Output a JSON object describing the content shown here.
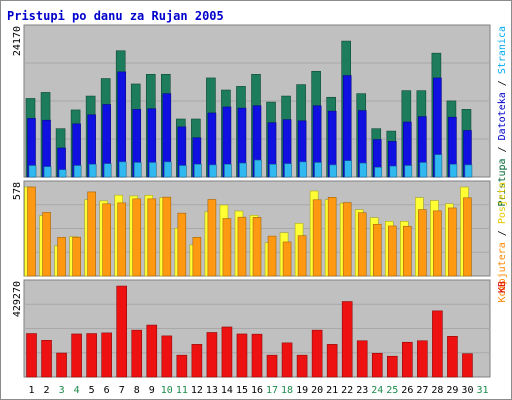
{
  "chart_data": [
    {
      "type": "bar",
      "title": "Pristupi po danu za Rujan 2005",
      "categories": [
        "1",
        "2",
        "3",
        "4",
        "5",
        "6",
        "7",
        "8",
        "9",
        "10",
        "11",
        "12",
        "13",
        "14",
        "15",
        "16",
        "17",
        "18",
        "19",
        "20",
        "21",
        "22",
        "23",
        "24",
        "25",
        "26",
        "27",
        "28",
        "29",
        "30",
        "31"
      ],
      "weekend_days": [
        "3",
        "4",
        "10",
        "11",
        "17",
        "18",
        "24",
        "25",
        "31"
      ],
      "panels": [
        {
          "name": "top",
          "ymax_label": "24170",
          "ymax": 24170,
          "right_labels": [
            {
              "text": "Pristupa",
              "color": "#006633"
            },
            {
              "text": " / ",
              "color": "#000000"
            },
            {
              "text": "Datoteka",
              "color": "#0000cc"
            },
            {
              "text": " / ",
              "color": "#000000"
            },
            {
              "text": "Stranica",
              "color": "#00aaee"
            }
          ],
          "series": [
            {
              "name": "Pristupa",
              "color": "#1c7c5c",
              "values": [
                13000,
                14000,
                8000,
                11100,
                13400,
                16300,
                20900,
                15400,
                17000,
                17000,
                9600,
                9600,
                16400,
                14400,
                15000,
                17000,
                12400,
                13400,
                15300,
                17500,
                13200,
                22500,
                13800,
                8000,
                7600,
                14300,
                14300,
                20500,
                12600,
                11200,
                0
              ]
            },
            {
              "name": "Datoteka",
              "color": "#1010e0",
              "values": [
                9700,
                9400,
                4800,
                8800,
                10300,
                12000,
                17400,
                11200,
                11300,
                13800,
                8300,
                6500,
                10600,
                11600,
                11400,
                11800,
                9000,
                9500,
                9300,
                11800,
                10900,
                16800,
                11000,
                6200,
                5900,
                9100,
                10000,
                16400,
                9900,
                7700,
                0
              ]
            },
            {
              "name": "Stranica",
              "color": "#30b8f0",
              "values": [
                1900,
                1700,
                1200,
                1900,
                2100,
                2200,
                2500,
                2400,
                2400,
                2500,
                1900,
                2100,
                2000,
                2100,
                2300,
                2800,
                2100,
                2200,
                2500,
                2400,
                2000,
                2700,
                2300,
                1600,
                1800,
                1900,
                2400,
                3700,
                2100,
                2000,
                0
              ]
            }
          ]
        },
        {
          "name": "middle",
          "ymax_label": "578",
          "ymax": 578,
          "right_labels": [
            {
              "text": "Kompjutera",
              "color": "#ff8800"
            },
            {
              "text": " / ",
              "color": "#000000"
            },
            {
              "text": "Posjeta",
              "color": "#e6c800"
            }
          ],
          "series": [
            {
              "name": "Posjeta",
              "color": "#ffff33",
              "values": [
                578,
                392,
                196,
                256,
                496,
                488,
                525,
                520,
                524,
                509,
                310,
                202,
                417,
                461,
                422,
                394,
                217,
                281,
                342,
                552,
                496,
                473,
                431,
                379,
                355,
                355,
                509,
                490,
                469,
                578,
                0
              ]
            },
            {
              "name": "Kompjutera",
              "color": "#ff9911",
              "values": [
                578,
                413,
                251,
                252,
                546,
                469,
                475,
                501,
                501,
                512,
                408,
                251,
                497,
                373,
                382,
                381,
                259,
                221,
                262,
                495,
                511,
                477,
                411,
                336,
                325,
                323,
                431,
                423,
                442,
                508,
                0
              ]
            }
          ]
        },
        {
          "name": "bottom",
          "ymax_label": "429270",
          "ymax": 429270,
          "right_labels": [
            {
              "text": "KB",
              "color": "#dd0000"
            }
          ],
          "series": [
            {
              "name": "KB",
              "color": "#ee1111",
              "values": [
                205000,
                173000,
                113000,
                203000,
                205000,
                208000,
                429000,
                221000,
                245000,
                194000,
                103000,
                154000,
                210000,
                236000,
                203000,
                202000,
                103000,
                161000,
                103000,
                221000,
                154000,
                356000,
                171000,
                112000,
                98000,
                164000,
                171000,
                312000,
                192000,
                110000,
                0
              ]
            }
          ]
        }
      ]
    }
  ]
}
